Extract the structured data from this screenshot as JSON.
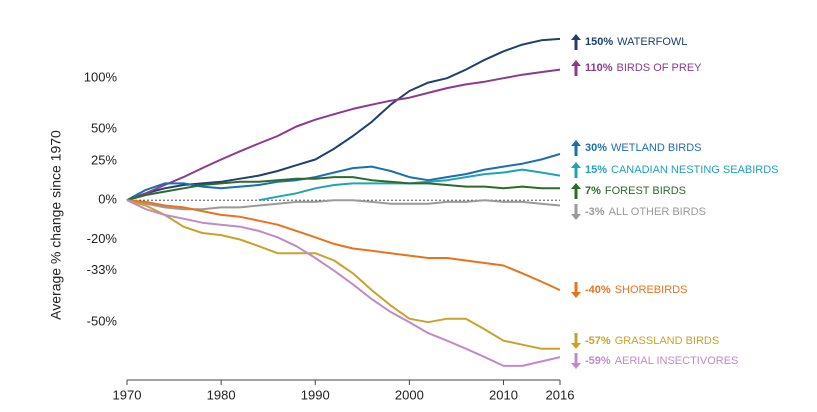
{
  "chart_data": {
    "type": "line",
    "y_label": "Average % change since 1970",
    "yscale": "log-ratio",
    "x": [
      1970,
      1972,
      1974,
      1976,
      1978,
      1980,
      1982,
      1984,
      1986,
      1988,
      1990,
      1992,
      1994,
      1996,
      1998,
      2000,
      2002,
      2004,
      2006,
      2008,
      2010,
      2012,
      2014,
      2016
    ],
    "xlim": [
      1970,
      2016
    ],
    "xticks": [
      1970,
      1980,
      1990,
      2000,
      2010,
      2016
    ],
    "ylim": [
      -64,
      160
    ],
    "yticks": [
      {
        "value": 100,
        "label": "100%"
      },
      {
        "value": 50,
        "label": "50%"
      },
      {
        "value": 25,
        "label": "25%"
      },
      {
        "value": 0,
        "label": "0%"
      },
      {
        "value": -20,
        "label": "-20%"
      },
      {
        "value": -33,
        "label": "-33%"
      },
      {
        "value": -50,
        "label": "-50%"
      }
    ],
    "series": [
      {
        "name": "WATERFOWL",
        "end_label": "150%",
        "color": "#1f3f6e",
        "values": [
          0,
          4,
          7,
          9,
          10,
          11,
          13,
          15,
          18,
          22,
          26,
          34,
          44,
          56,
          72,
          86,
          95,
          100,
          110,
          122,
          133,
          142,
          148,
          150
        ]
      },
      {
        "name": "BIRDS OF PREY",
        "end_label": "110%",
        "color": "#8b3a8f",
        "values": [
          0,
          4,
          9,
          14,
          20,
          26,
          32,
          38,
          44,
          52,
          58,
          63,
          68,
          72,
          76,
          79,
          84,
          89,
          93,
          96,
          100,
          104,
          107,
          110
        ]
      },
      {
        "name": "WETLAND BIRDS",
        "end_label": "30%",
        "color": "#1a6fb0",
        "values": [
          0,
          6,
          10,
          10,
          8,
          7,
          8,
          9,
          11,
          12,
          14,
          17,
          20,
          21,
          18,
          14,
          12,
          14,
          16,
          19,
          21,
          23,
          26,
          30
        ]
      },
      {
        "name": "CANADIAN NESTING SEABIRDS",
        "end_label": "15%",
        "color": "#1fa3b5",
        "values": [
          null,
          null,
          null,
          null,
          null,
          null,
          null,
          0,
          2,
          4,
          7,
          9,
          10,
          10,
          10,
          10,
          11,
          12,
          14,
          16,
          17,
          19,
          17,
          15
        ]
      },
      {
        "name": "FOREST BIRDS",
        "end_label": "7%",
        "color": "#2e6b2a",
        "values": [
          0,
          3,
          5,
          7,
          9,
          10,
          11,
          11,
          12,
          13,
          13,
          14,
          14,
          12,
          11,
          10,
          10,
          9,
          8,
          8,
          7,
          8,
          7,
          7
        ]
      },
      {
        "name": "ALL OTHER BIRDS",
        "end_label": "-3%",
        "color": "#9a9a9a",
        "values": [
          0,
          -2,
          -4,
          -5,
          -5,
          -4,
          -4,
          -3,
          -2,
          -1,
          -1,
          0,
          0,
          -1,
          -2,
          -2,
          -2,
          -1,
          -1,
          0,
          -1,
          -1,
          -2,
          -3
        ]
      },
      {
        "name": "SHOREBIRDS",
        "end_label": "-40%",
        "color": "#e8731f",
        "values": [
          0,
          -1,
          -3,
          -4,
          -6,
          -8,
          -9,
          -11,
          -13,
          -16,
          -19,
          -22,
          -24,
          -25,
          -26,
          -27,
          -28,
          -28,
          -29,
          -30,
          -31,
          -34,
          -37,
          -40
        ]
      },
      {
        "name": "GRASSLAND BIRDS",
        "end_label": "-57%",
        "color": "#c9a22a",
        "values": [
          0,
          -3,
          -8,
          -14,
          -17,
          -18,
          -20,
          -23,
          -26,
          -26,
          -26,
          -29,
          -34,
          -40,
          -45,
          -49,
          -50,
          -49,
          -49,
          -52,
          -55,
          -56,
          -57,
          -57
        ]
      },
      {
        "name": "AERIAL INSECTIVORES",
        "end_label": "-59%",
        "color": "#c08ac8",
        "values": [
          0,
          -5,
          -8,
          -10,
          -12,
          -13,
          -14,
          -16,
          -19,
          -23,
          -28,
          -33,
          -38,
          -43,
          -47,
          -50,
          -53,
          -55,
          -57,
          -59,
          -61,
          -61,
          -60,
          -59
        ]
      }
    ]
  }
}
